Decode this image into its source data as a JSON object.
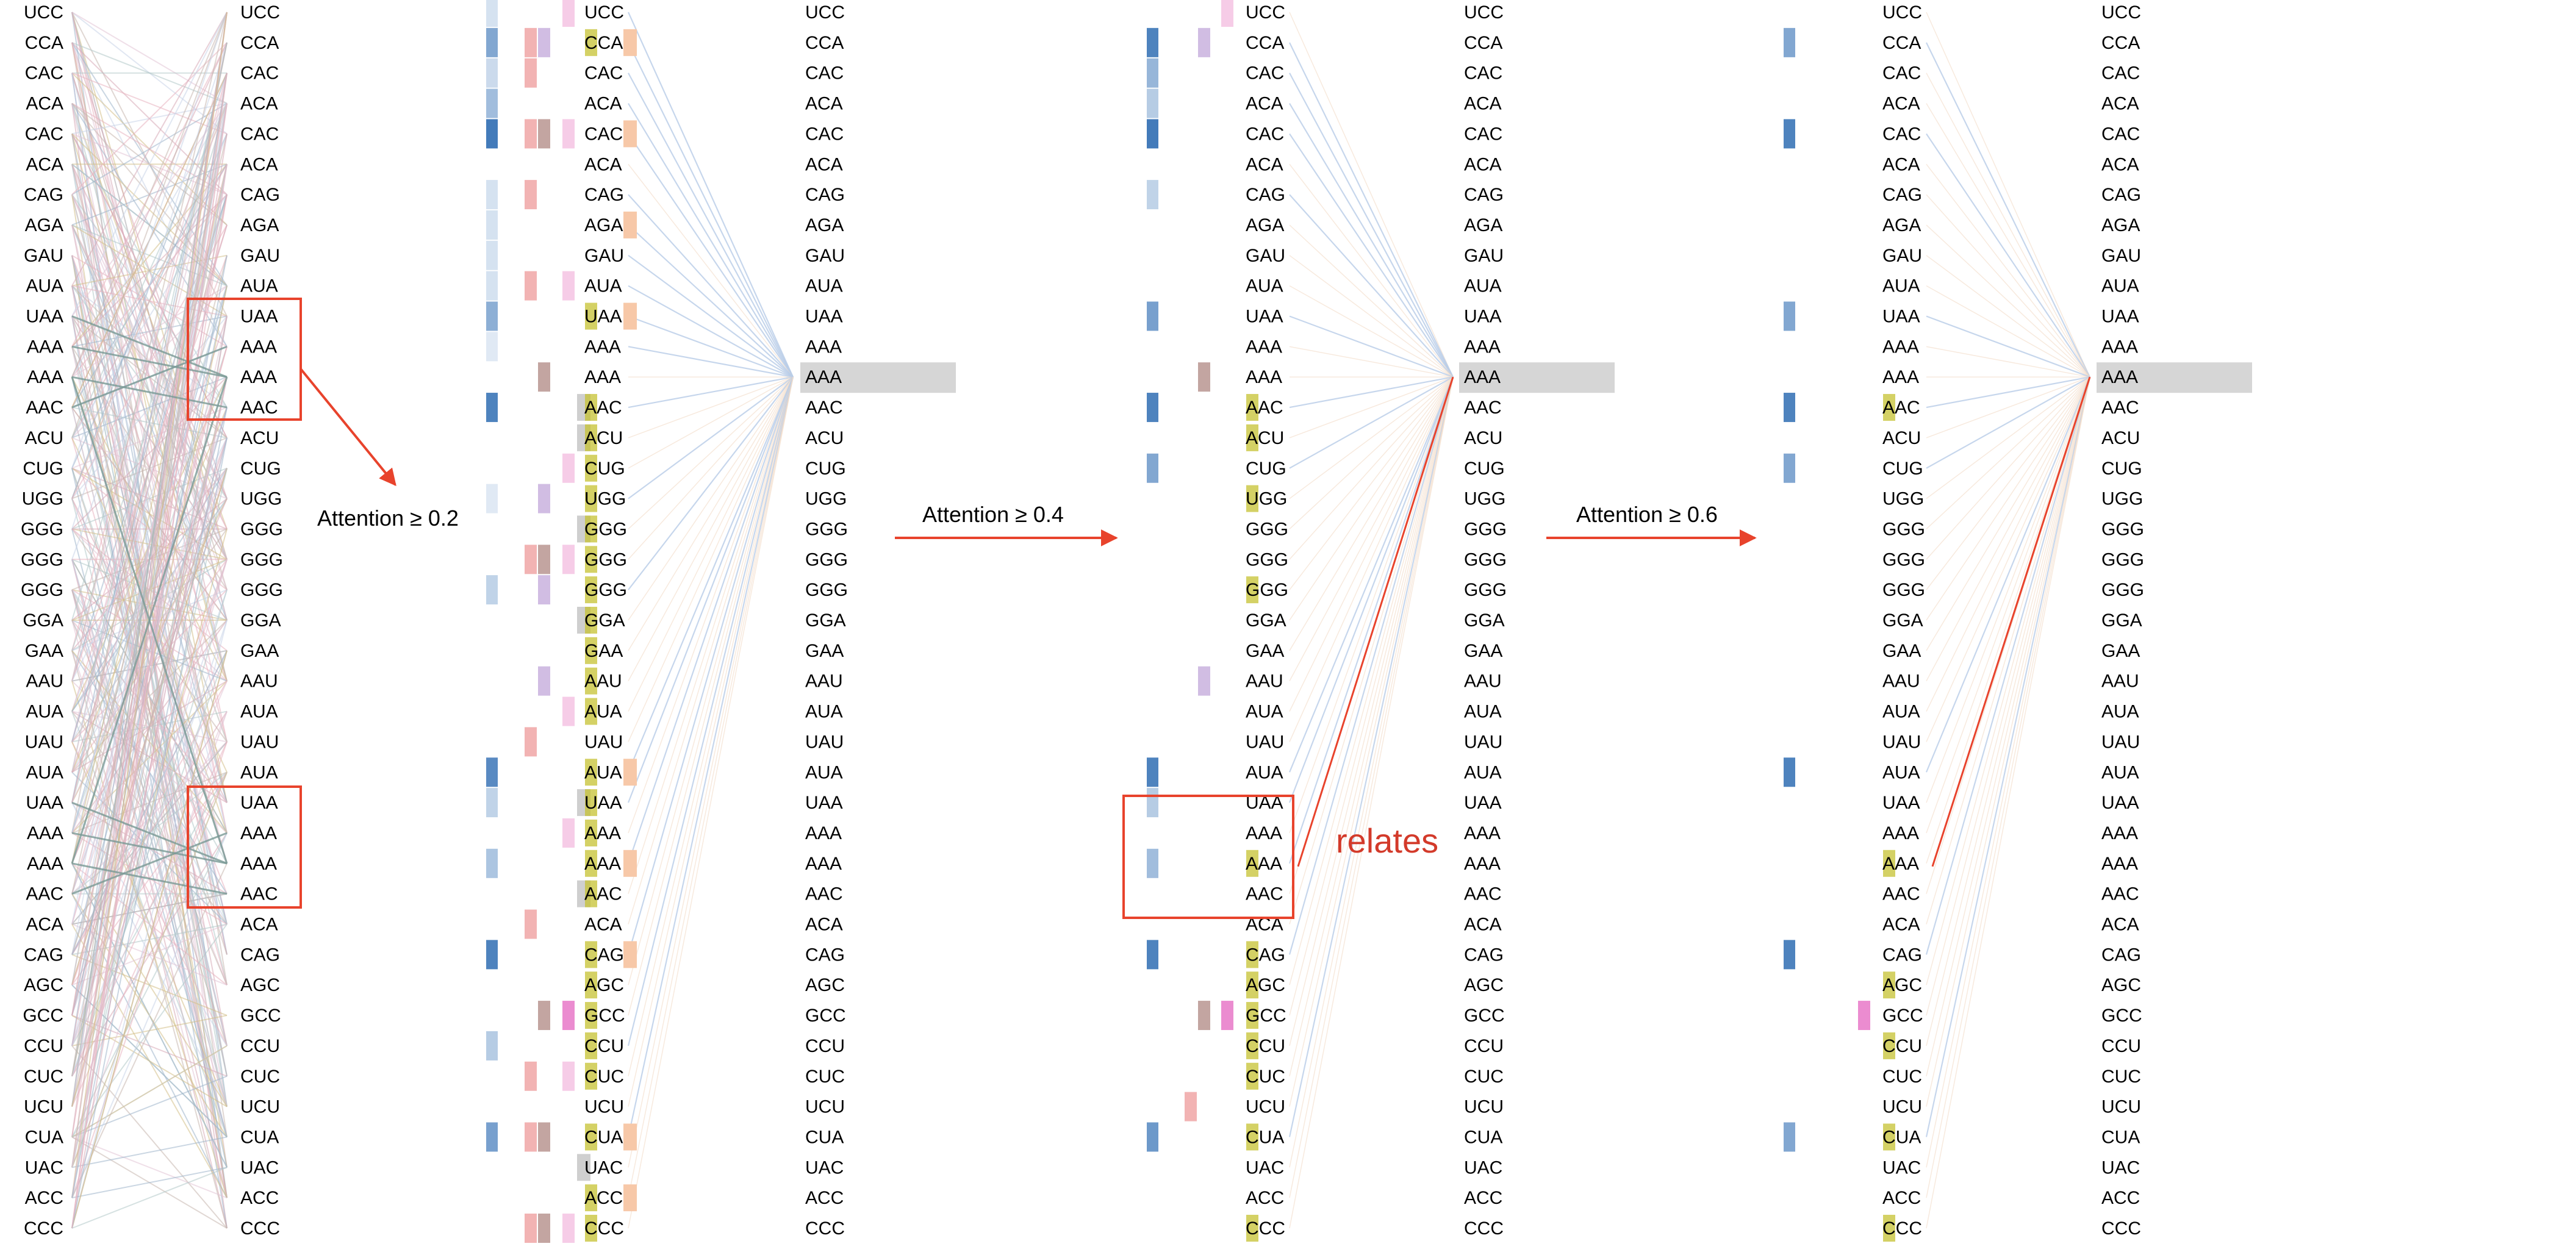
{
  "codons": [
    "UCC",
    "CCA",
    "CAC",
    "ACA",
    "CAC",
    "ACA",
    "CAG",
    "AGA",
    "GAU",
    "AUA",
    "UAA",
    "AAA",
    "AAA",
    "AAC",
    "ACU",
    "CUG",
    "UGG",
    "GGG",
    "GGG",
    "GGG",
    "GGA",
    "GAA",
    "AAU",
    "AUA",
    "UAU",
    "AUA",
    "UAA",
    "AAA",
    "AAA",
    "AAC",
    "ACA",
    "CAG",
    "AGC",
    "GCC",
    "CCU",
    "CUC",
    "UCU",
    "CUA",
    "UAC",
    "ACC",
    "CCC"
  ],
  "focus_token_index": 12,
  "arrows": [
    {
      "label": "Attention ≥ 0.2"
    },
    {
      "label": "Attention ≥ 0.4"
    },
    {
      "label": "Attention ≥ 0.6"
    }
  ],
  "annotation": {
    "label": "relates",
    "color": "#d33a2a"
  },
  "colors": {
    "accent_red": "#e8432c",
    "highlight_gray": "#d6d6d6",
    "blue": "#2f6db3",
    "yellow": "#c5c232",
    "orange": "#f7c8a8",
    "pink": "#e878c8",
    "mauve": "#b99590",
    "lavender": "#c9b1de",
    "salmon": "#f0a6a6",
    "rose": "#f5c3e3"
  },
  "panels": [
    {
      "blue": [
        0.2,
        0.6,
        0.25,
        0.45,
        0.9,
        0,
        0.2,
        0.2,
        0.2,
        0.2,
        0.55,
        0.15,
        0,
        0.85,
        0,
        0,
        0.15,
        0,
        0,
        0.3,
        0,
        0,
        0,
        0,
        0,
        0.8,
        0.3,
        0,
        0.4,
        0,
        0,
        0.85,
        0,
        0,
        0.35,
        0,
        0,
        0.65,
        0,
        0,
        0
      ],
      "salmon": [
        1,
        2,
        4,
        6,
        9,
        18,
        24,
        30,
        35,
        37,
        40
      ],
      "mauve": [
        4,
        12,
        18,
        33,
        37,
        40
      ],
      "lavender": [
        1,
        16,
        19,
        22
      ],
      "rose": [
        0,
        4,
        9,
        15,
        18,
        23,
        27,
        35,
        40
      ],
      "pink": [
        33
      ],
      "gray": [
        13,
        14,
        17,
        20,
        26,
        29,
        38
      ],
      "yellow": [
        1,
        10,
        13,
        14,
        15,
        16,
        17,
        18,
        19,
        20,
        21,
        22,
        23,
        25,
        26,
        27,
        28,
        29,
        31,
        32,
        33,
        34,
        35,
        37,
        39,
        40
      ],
      "orange": [
        1,
        4,
        7,
        10,
        25,
        28,
        31,
        37,
        39
      ]
    },
    {
      "blue": [
        0,
        0.85,
        0.5,
        0.35,
        0.9,
        0,
        0.3,
        0,
        0,
        0,
        0.65,
        0,
        0,
        0.85,
        0,
        0.6,
        0,
        0,
        0,
        0,
        0,
        0,
        0,
        0,
        0,
        0.85,
        0.35,
        0,
        0.45,
        0,
        0,
        0.85,
        0,
        0,
        0,
        0,
        0,
        0.7,
        0,
        0,
        0
      ],
      "salmon": [
        36
      ],
      "mauve": [
        12,
        33
      ],
      "lavender": [
        1,
        22
      ],
      "rose": [
        0
      ],
      "pink": [
        33
      ],
      "yellow": [
        13,
        14,
        16,
        19,
        28,
        31,
        32,
        33,
        34,
        35,
        37,
        40
      ],
      "orange": []
    },
    {
      "blue": [
        0,
        0.6,
        0,
        0,
        0.85,
        0,
        0,
        0,
        0,
        0,
        0.6,
        0,
        0,
        0.85,
        0,
        0.6,
        0,
        0,
        0,
        0,
        0,
        0,
        0,
        0,
        0,
        0.85,
        0,
        0,
        0,
        0,
        0,
        0.85,
        0,
        0,
        0,
        0,
        0,
        0.6,
        0,
        0,
        0
      ],
      "pink": [
        33
      ],
      "yellow": [
        13,
        28,
        32,
        34,
        37,
        40
      ]
    }
  ]
}
